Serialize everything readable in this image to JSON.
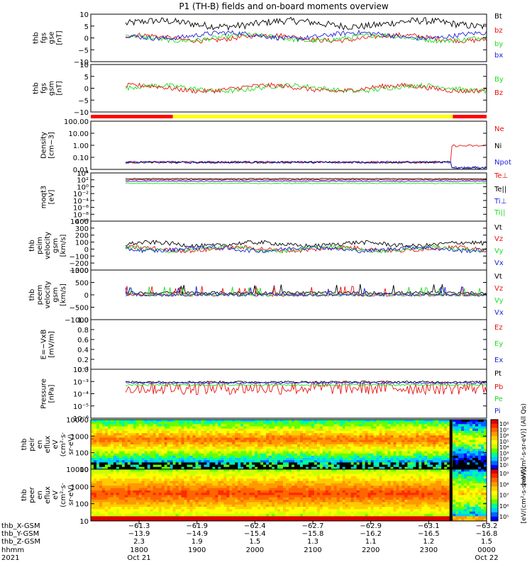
{
  "title": "P1 (TH-B) fields and on-board moments overview",
  "colors": {
    "black": "#000000",
    "red": "#e8120f",
    "green": "#22dd22",
    "blue": "#1f1fe0",
    "yellow": "#ffff00",
    "bar_red": "#ff0000"
  },
  "chart_data": [
    {
      "id": "fgs",
      "type": "line",
      "ylabel_lines": [
        "thb",
        "fgs",
        "gse",
        "[nT]"
      ],
      "ylim": [
        -10,
        10
      ],
      "yticks": [
        "10",
        "5",
        "0",
        "−5",
        "−10"
      ],
      "legend": [
        {
          "name": "Bt",
          "color": "black"
        },
        {
          "name": "bz",
          "color": "red"
        },
        {
          "name": "by",
          "color": "green"
        },
        {
          "name": "bx",
          "color": "blue"
        }
      ]
    },
    {
      "id": "fgs_gsm",
      "type": "line",
      "ylabel_lines": [
        "thb",
        "fgs",
        "gsm",
        "[nT]"
      ],
      "ylim": [
        -10,
        10
      ],
      "yticks": [
        "10",
        "5",
        "0",
        "−5",
        "−10"
      ],
      "legend": [
        {
          "name": "By",
          "color": "green"
        },
        {
          "name": "Bz",
          "color": "red"
        }
      ]
    },
    {
      "id": "mode_bar",
      "type": "bar",
      "segments": [
        {
          "color": "bar_red",
          "from": "17:10",
          "to": "18:35"
        },
        {
          "color": "yellow",
          "from": "18:35",
          "to": "23:25"
        },
        {
          "color": "bar_red",
          "from": "23:25",
          "to": "24:00"
        }
      ]
    },
    {
      "id": "density",
      "type": "line",
      "scale": "log",
      "ylabel_lines": [
        "Density",
        "[cm−3]"
      ],
      "ylim": [
        0.06,
        200
      ],
      "yticks": [
        "100.00",
        "10.00",
        "1.00",
        "0.10",
        "0.01"
      ],
      "legend": [
        {
          "name": "Ne",
          "color": "red"
        },
        {
          "name": "Ni",
          "color": "black"
        },
        {
          "name": "Npot",
          "color": "blue"
        }
      ]
    },
    {
      "id": "temp",
      "type": "line",
      "scale": "log",
      "ylabel_lines": [
        "moqt3",
        "[eV]"
      ],
      "ylim": [
        1e-10,
        10000.0
      ],
      "yticks": [
        "10⁴",
        "10²",
        "10⁰",
        "10⁻²",
        "10⁻⁴",
        "10⁻⁶",
        "10⁻⁸",
        "10⁻¹⁰"
      ],
      "legend": [
        {
          "name": "Te⊥",
          "color": "red"
        },
        {
          "name": "Te||",
          "color": "black"
        },
        {
          "name": "Ti⊥",
          "color": "blue"
        },
        {
          "name": "Ti||",
          "color": "green"
        }
      ]
    },
    {
      "id": "peim_v",
      "type": "line",
      "ylabel_lines": [
        "thb",
        "peim",
        "velocity",
        "gsm",
        "[km/s]"
      ],
      "ylim": [
        -300,
        400
      ],
      "yticks": [
        "400",
        "300",
        "200",
        "100",
        "0",
        "−100",
        "−200",
        "−300"
      ],
      "legend": [
        {
          "name": "Vt",
          "color": "black"
        },
        {
          "name": "Vz",
          "color": "red"
        },
        {
          "name": "Vy",
          "color": "green"
        },
        {
          "name": "Vx",
          "color": "blue"
        }
      ]
    },
    {
      "id": "peem_v",
      "type": "line",
      "ylabel_lines": [
        "thb",
        "peem",
        "velocity",
        "gsm",
        "[km/s]"
      ],
      "ylim": [
        -1000,
        1000
      ],
      "yticks": [
        "1000",
        "500",
        "0",
        "−500",
        "−1000"
      ],
      "legend": [
        {
          "name": "Vt",
          "color": "black"
        },
        {
          "name": "Vz",
          "color": "red"
        },
        {
          "name": "Vy",
          "color": "green"
        },
        {
          "name": "Vx",
          "color": "blue"
        }
      ]
    },
    {
      "id": "efield",
      "type": "line",
      "ylabel_lines": [
        "E=−VxB",
        "[mV/m]"
      ],
      "ylim": [
        0,
        1
      ],
      "yticks": [
        "1.0",
        "0.8",
        "0.6",
        "0.4",
        "0.2",
        "0.0"
      ],
      "legend": [
        {
          "name": "Ez",
          "color": "red"
        },
        {
          "name": "Ey",
          "color": "green"
        },
        {
          "name": "Ex",
          "color": "blue"
        }
      ]
    },
    {
      "id": "pressure",
      "type": "line",
      "scale": "log",
      "ylabel_lines": [
        "Pressure",
        "[nPa]"
      ],
      "ylim": [
        1e-06,
        0.1
      ],
      "yticks": [
        "10⁻²",
        "10⁻³",
        "10⁻⁴",
        "10⁻⁵",
        "10⁻⁶"
      ],
      "legend": [
        {
          "name": "Pt",
          "color": "black"
        },
        {
          "name": "Pb",
          "color": "red"
        },
        {
          "name": "Pe",
          "color": "green"
        },
        {
          "name": "Pi",
          "color": "blue"
        }
      ]
    },
    {
      "id": "peir",
      "type": "heatmap",
      "ylabel_lines": [
        "thb",
        "peir",
        "en",
        "eflux",
        "eV",
        "(cm²·s·",
        "sr·eV)"
      ],
      "ylim": [
        5,
        30000
      ],
      "yticks": [
        "10000",
        "1000",
        "100",
        "10"
      ],
      "colorbar_label": "[eV/(cm²-s-sr-eV)] (All Qs)",
      "colorbar_ticks": [
        "10⁸",
        "10⁷",
        "10⁶",
        "10⁵",
        "10⁴",
        "10³",
        "10²",
        "10¹"
      ]
    },
    {
      "id": "peer",
      "type": "heatmap",
      "ylabel_lines": [
        "thb",
        "peer",
        "en",
        "eflux",
        "eV",
        "(cm²·s·",
        "sr·eV)"
      ],
      "ylim": [
        5,
        30000
      ],
      "yticks": [
        "10000",
        "1000",
        "100",
        "10"
      ],
      "colorbar_label": "[eV/(cm²-s-sr-eV)]",
      "colorbar_ticks": [
        "10⁹",
        "10⁸",
        "10⁷",
        "10⁶",
        "10⁵"
      ]
    }
  ],
  "x_axis": {
    "row_labels": [
      "thb_X-GSM",
      "thb_Y-GSM",
      "thb_Z-GSM",
      "hhmm",
      "2021"
    ],
    "ticks": [
      {
        "X": "−61.3",
        "Y": "−13.9",
        "Z": "2.3",
        "hhmm": "1800",
        "date": "Oct 21"
      },
      {
        "X": "−61.9",
        "Y": "−14.9",
        "Z": "1.9",
        "hhmm": "1900",
        "date": ""
      },
      {
        "X": "−62.4",
        "Y": "−15.4",
        "Z": "1.5",
        "hhmm": "2000",
        "date": ""
      },
      {
        "X": "−62.7",
        "Y": "−15.8",
        "Z": "1.3",
        "hhmm": "2100",
        "date": ""
      },
      {
        "X": "−62.9",
        "Y": "−16.2",
        "Z": "1.1",
        "hhmm": "2200",
        "date": ""
      },
      {
        "X": "−63.1",
        "Y": "−16.5",
        "Z": "1.2",
        "hhmm": "2300",
        "date": ""
      },
      {
        "X": "−63.2",
        "Y": "−16.8",
        "Z": "1.5",
        "hhmm": "0000",
        "date": "Oct 22"
      }
    ]
  }
}
